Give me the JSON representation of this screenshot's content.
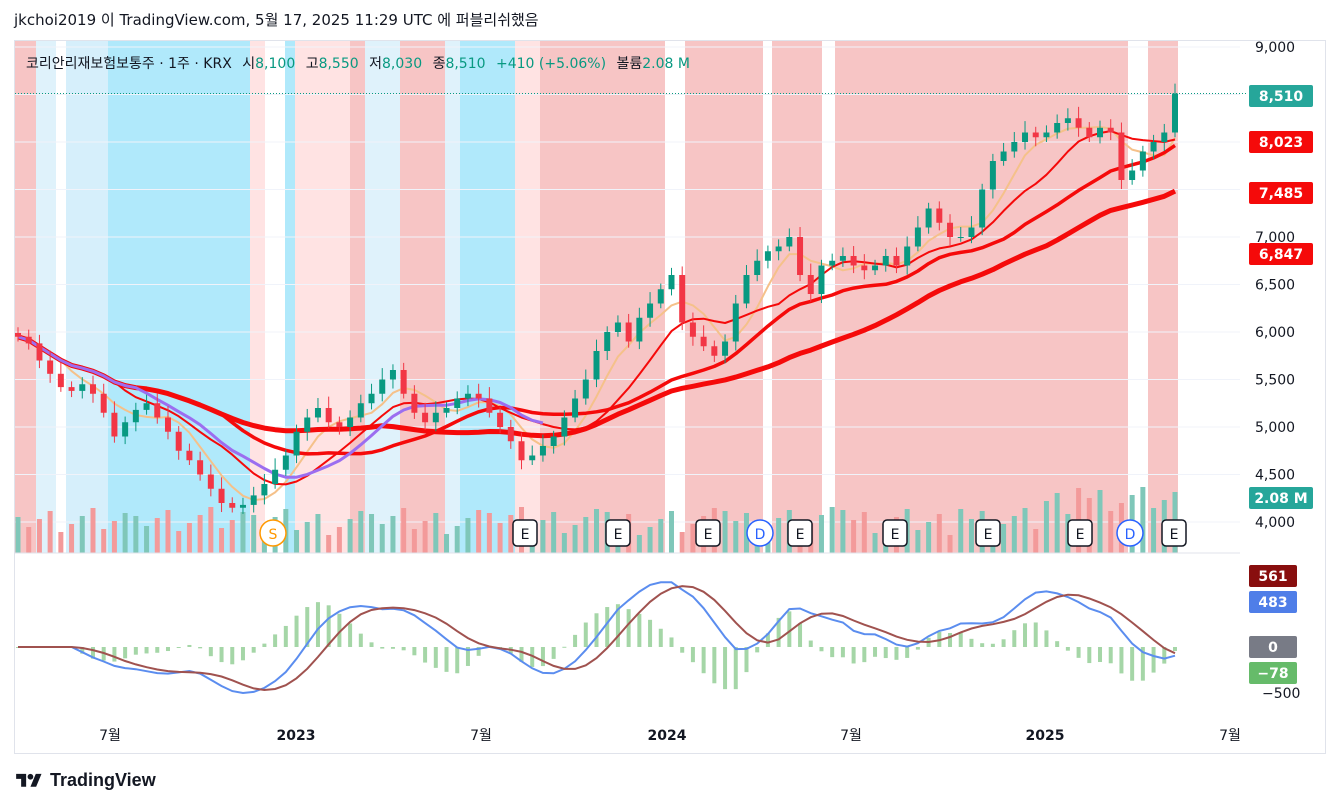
{
  "header": {
    "text": "jkchoi2019 이 TradingView.com, 5월 17, 2025 11:29 UTC 에 퍼블리쉬했음"
  },
  "legend": {
    "symbol": "코리안리재보험보통주 · 1주 · KRX",
    "open_label": "시",
    "open": "8,100",
    "high_label": "고",
    "high": "8,550",
    "low_label": "저",
    "low": "8,030",
    "close_label": "종",
    "close": "8,510",
    "change": "+410 (+5.06%)",
    "volume_label": "볼륨",
    "volume": "2.08 M"
  },
  "price_labels": [
    {
      "text": "8,510",
      "color": "#26a69a"
    },
    {
      "text": "8,023",
      "color": "#f50a0a"
    },
    {
      "text": "7,485",
      "color": "#f50a0a"
    },
    {
      "text": "6,847",
      "color": "#f50a0a"
    },
    {
      "text": "2.08 M",
      "color": "#26a69a"
    }
  ],
  "macd_labels": [
    {
      "text": "561",
      "color": "#880e0e"
    },
    {
      "text": "483",
      "color": "#4f7ee8"
    },
    {
      "text": "0",
      "color": "#787b86"
    },
    {
      "text": "−78",
      "color": "#66bb6a"
    }
  ],
  "footer": {
    "brand": "TradingView"
  },
  "chart_data": {
    "type": "candlestick",
    "interval": "1주",
    "y_axis_ticks": [
      "9,000",
      "8,500",
      "8,000",
      "7,500",
      "7,000",
      "6,500",
      "6,000",
      "5,500",
      "5,000",
      "4,500",
      "4,000"
    ],
    "macd_axis_ticks": [
      "0",
      "−500"
    ],
    "x_axis_labels": [
      "7월",
      "2023",
      "7월",
      "2024",
      "7월",
      "2025",
      "7월"
    ],
    "ylim": [
      3850,
      9050
    ],
    "last": {
      "open": 8100,
      "high": 8550,
      "low": 8030,
      "close": 8510,
      "change": 410,
      "change_pct": 5.06,
      "volume": "2.08M"
    },
    "moving_averages": [
      {
        "value": 8023,
        "color": "#f50a0a"
      },
      {
        "value": 7485,
        "color": "#f50a0a"
      },
      {
        "value": 6847,
        "color": "#f50a0a"
      }
    ],
    "close_series_approx": [
      5950,
      5880,
      5700,
      5560,
      5420,
      5380,
      5450,
      5350,
      5150,
      4900,
      5050,
      5180,
      5250,
      5100,
      4950,
      4750,
      4650,
      4500,
      4350,
      4200,
      4150,
      4180,
      4280,
      4400,
      4550,
      4700,
      4950,
      5100,
      5200,
      5050,
      5000,
      5100,
      5250,
      5350,
      5500,
      5600,
      5350,
      5150,
      5050,
      5150,
      5200,
      5300,
      5350,
      5300,
      5150,
      5000,
      4850,
      4650,
      4700,
      4800,
      4900,
      5100,
      5300,
      5500,
      5800,
      6000,
      6100,
      5900,
      6150,
      6300,
      6450,
      6600,
      6100,
      5950,
      5850,
      5750,
      5900,
      6300,
      6600,
      6750,
      6850,
      6900,
      7000,
      6600,
      6400,
      6700,
      6750,
      6800,
      6700,
      6650,
      6700,
      6800,
      6700,
      6900,
      7100,
      7300,
      7150,
      7000,
      7000,
      7100,
      7500,
      7800,
      7900,
      8000,
      8100,
      8050,
      8100,
      8200,
      8250,
      8150,
      8050,
      8150,
      8100,
      7600,
      7700,
      7900,
      8000,
      8100,
      8510
    ],
    "macd": {
      "macd": 483,
      "signal": 561,
      "histogram": -78
    },
    "events": [
      "S",
      "E",
      "E",
      "E",
      "D",
      "E",
      "E",
      "E",
      "E",
      "D",
      "E"
    ]
  }
}
